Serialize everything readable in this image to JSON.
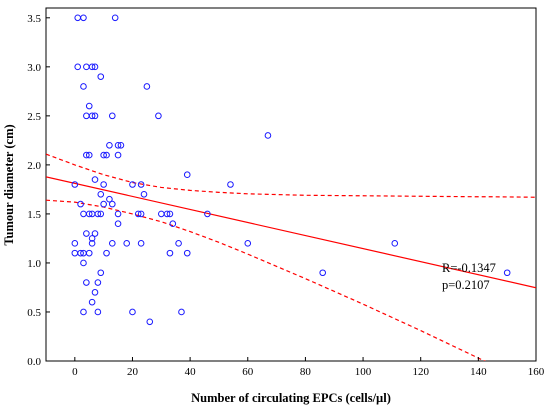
{
  "chart_data": {
    "type": "scatter",
    "title": "",
    "xlabel": "Number of circulating EPCs (cells/µl)",
    "ylabel": "Tumour diameter (cm)",
    "xlim": [
      -10,
      160
    ],
    "ylim": [
      0,
      3.6
    ],
    "x_ticks": [
      0,
      20,
      40,
      60,
      80,
      100,
      120,
      140,
      160
    ],
    "y_ticks": [
      0.0,
      0.5,
      1.0,
      1.5,
      2.0,
      2.5,
      3.0,
      3.5
    ],
    "x_tick_labels": [
      "0",
      "20",
      "40",
      "60",
      "80",
      "100",
      "120",
      "140",
      "160"
    ],
    "y_tick_labels": [
      "0.0",
      "0.5",
      "1.0",
      "1.5",
      "2.0",
      "2.5",
      "3.0",
      "3.5"
    ],
    "grid": false,
    "annotations": [
      "R=-0.1347",
      "p=0.2107"
    ],
    "points": [
      [
        1,
        3.5
      ],
      [
        3,
        3.5
      ],
      [
        14,
        3.5
      ],
      [
        1,
        3.0
      ],
      [
        4,
        3.0
      ],
      [
        6,
        3.0
      ],
      [
        7,
        3.0
      ],
      [
        9,
        2.9
      ],
      [
        3,
        2.8
      ],
      [
        25,
        2.8
      ],
      [
        5,
        2.6
      ],
      [
        4,
        2.5
      ],
      [
        6,
        2.5
      ],
      [
        7,
        2.5
      ],
      [
        13,
        2.5
      ],
      [
        29,
        2.5
      ],
      [
        67,
        2.3
      ],
      [
        12,
        2.2
      ],
      [
        15,
        2.2
      ],
      [
        16,
        2.2
      ],
      [
        4,
        2.1
      ],
      [
        5,
        2.1
      ],
      [
        10,
        2.1
      ],
      [
        11,
        2.1
      ],
      [
        15,
        2.1
      ],
      [
        39,
        1.9
      ],
      [
        7,
        1.85
      ],
      [
        0,
        1.8
      ],
      [
        10,
        1.8
      ],
      [
        20,
        1.8
      ],
      [
        23,
        1.8
      ],
      [
        54,
        1.8
      ],
      [
        9,
        1.7
      ],
      [
        24,
        1.7
      ],
      [
        10,
        1.6
      ],
      [
        12,
        1.65
      ],
      [
        13,
        1.6
      ],
      [
        2,
        1.6
      ],
      [
        3,
        1.5
      ],
      [
        5,
        1.5
      ],
      [
        6,
        1.5
      ],
      [
        8,
        1.5
      ],
      [
        9,
        1.5
      ],
      [
        15,
        1.5
      ],
      [
        22,
        1.5
      ],
      [
        23,
        1.5
      ],
      [
        30,
        1.5
      ],
      [
        32,
        1.5
      ],
      [
        33,
        1.5
      ],
      [
        46,
        1.5
      ],
      [
        15,
        1.4
      ],
      [
        34,
        1.4
      ],
      [
        7,
        1.3
      ],
      [
        6,
        1.25
      ],
      [
        4,
        1.3
      ],
      [
        0,
        1.2
      ],
      [
        6,
        1.2
      ],
      [
        13,
        1.2
      ],
      [
        18,
        1.2
      ],
      [
        23,
        1.2
      ],
      [
        36,
        1.2
      ],
      [
        60,
        1.2
      ],
      [
        111,
        1.2
      ],
      [
        0,
        1.1
      ],
      [
        2,
        1.1
      ],
      [
        3,
        1.1
      ],
      [
        5,
        1.1
      ],
      [
        11,
        1.1
      ],
      [
        33,
        1.1
      ],
      [
        39,
        1.1
      ],
      [
        3,
        1.0
      ],
      [
        9,
        0.9
      ],
      [
        86,
        0.9
      ],
      [
        150,
        0.9
      ],
      [
        4,
        0.8
      ],
      [
        8,
        0.8
      ],
      [
        7,
        0.7
      ],
      [
        6,
        0.6
      ],
      [
        3,
        0.5
      ],
      [
        8,
        0.5
      ],
      [
        20,
        0.5
      ],
      [
        37,
        0.5
      ],
      [
        26,
        0.4
      ]
    ],
    "fit_line": {
      "x": [
        -10,
        160
      ],
      "y": [
        1.878,
        0.747
      ]
    },
    "confidence_band": {
      "x": [
        -10,
        0,
        10,
        20,
        30,
        40,
        50,
        60,
        80,
        100,
        120,
        140,
        145,
        160
      ],
      "upper": [
        2.11,
        2.0,
        1.9,
        1.82,
        1.77,
        1.74,
        1.72,
        1.705,
        1.69,
        1.685,
        1.68,
        1.675,
        1.675,
        1.67
      ],
      "lower": [
        1.64,
        1.62,
        1.57,
        1.5,
        1.42,
        1.32,
        1.21,
        1.09,
        0.84,
        0.58,
        0.31,
        0.03,
        -0.04,
        -0.2
      ]
    },
    "colors": {
      "points": "#1a1aff",
      "fit_line": "#ff0000",
      "axes": "#000000"
    }
  }
}
